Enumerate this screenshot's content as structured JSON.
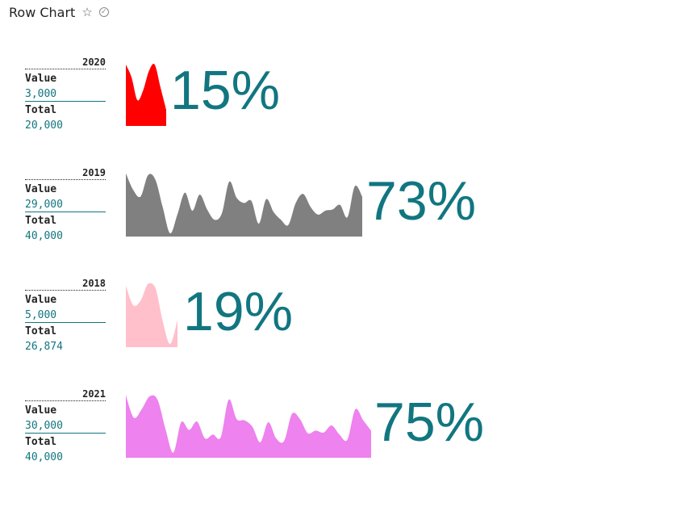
{
  "header": {
    "title": "Row Chart",
    "star_icon": "star-outline-icon",
    "check_icon": "check-circle-icon"
  },
  "labels": {
    "value": "Value",
    "total": "Total"
  },
  "chart_data": {
    "type": "area",
    "rows": [
      {
        "year": "2020",
        "value": "3,000",
        "total": "20,000",
        "percent": "15%",
        "color": "#FF0000",
        "series": [
          0.95,
          0.75,
          0.4,
          0.55,
          0.85,
          0.95,
          0.6,
          0.25
        ]
      },
      {
        "year": "2019",
        "value": "29,000",
        "total": "40,000",
        "percent": "73%",
        "color": "#808080",
        "series": [
          0.98,
          0.72,
          0.62,
          0.95,
          0.88,
          0.45,
          0.05,
          0.35,
          0.68,
          0.4,
          0.65,
          0.42,
          0.26,
          0.36,
          0.85,
          0.6,
          0.52,
          0.55,
          0.2,
          0.58,
          0.38,
          0.26,
          0.18,
          0.52,
          0.66,
          0.46,
          0.34,
          0.4,
          0.42,
          0.49,
          0.3,
          0.78,
          0.62
        ]
      },
      {
        "year": "2018",
        "value": "5,000",
        "total": "26,874",
        "percent": "19%",
        "color": "#FFC0CB",
        "series": [
          0.95,
          0.65,
          0.72,
          0.98,
          0.92,
          0.4,
          0.05,
          0.42
        ]
      },
      {
        "year": "2021",
        "value": "30,000",
        "total": "40,000",
        "percent": "75%",
        "color": "#EE82EE",
        "series": [
          0.97,
          0.62,
          0.75,
          0.95,
          0.9,
          0.45,
          0.08,
          0.55,
          0.43,
          0.56,
          0.3,
          0.36,
          0.32,
          0.9,
          0.6,
          0.58,
          0.48,
          0.24,
          0.55,
          0.3,
          0.26,
          0.68,
          0.6,
          0.38,
          0.42,
          0.39,
          0.5,
          0.36,
          0.28,
          0.75,
          0.58,
          0.42
        ]
      }
    ]
  }
}
